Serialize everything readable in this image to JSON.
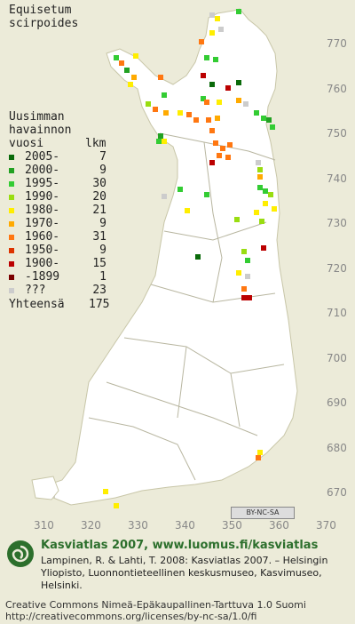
{
  "title": {
    "line1": "Equisetum",
    "line2": "scirpoides"
  },
  "legend": {
    "head1": "Uusimman",
    "head2": "havainnon",
    "head3_left": "vuosi",
    "head3_right": "lkm",
    "rows": [
      {
        "label": "2005-",
        "count": "7",
        "color": "#0a6a0a"
      },
      {
        "label": "2000-",
        "count": "9",
        "color": "#22a122"
      },
      {
        "label": "1995-",
        "count": "30",
        "color": "#33cc33"
      },
      {
        "label": "1990-",
        "count": "20",
        "color": "#99dd11"
      },
      {
        "label": "1980-",
        "count": "21",
        "color": "#ffee00"
      },
      {
        "label": "1970-",
        "count": "9",
        "color": "#ffaa00"
      },
      {
        "label": "1960-",
        "count": "31",
        "color": "#ff7711"
      },
      {
        "label": "1950-",
        "count": "9",
        "color": "#dd3300"
      },
      {
        "label": "1900-",
        "count": "15",
        "color": "#bb0000"
      },
      {
        "label": "-1899",
        "count": "1",
        "color": "#7a0000"
      },
      {
        "label": "???",
        "count": "23",
        "color": "#cccccc"
      }
    ],
    "total_label": "Yhteensä",
    "total_value": "175"
  },
  "map": {
    "y_ticks": [
      "770",
      "760",
      "750",
      "740",
      "730",
      "720",
      "710",
      "700",
      "690",
      "680",
      "670"
    ],
    "x_ticks": [
      "310",
      "320",
      "330",
      "340",
      "350",
      "360",
      "370"
    ],
    "cc_badge": "BY-NC-SA"
  },
  "footer": {
    "brand": "Kasviatlas 2007, www.luomus.fi/kasviatlas",
    "citation": "Lampinen, R. & Lahti, T. 2008: Kasviatlas 2007. – Helsingin Yliopisto, Luonnontieteellinen keskusmuseo, Kasvimuseo, Helsinki.",
    "license1": "Creative Commons Nimeä-Epäkaupallinen-Tarttuva 1.0 Suomi",
    "license2": "http://creativecommons.org/licenses/by-nc-sa/1.0/fi"
  }
}
